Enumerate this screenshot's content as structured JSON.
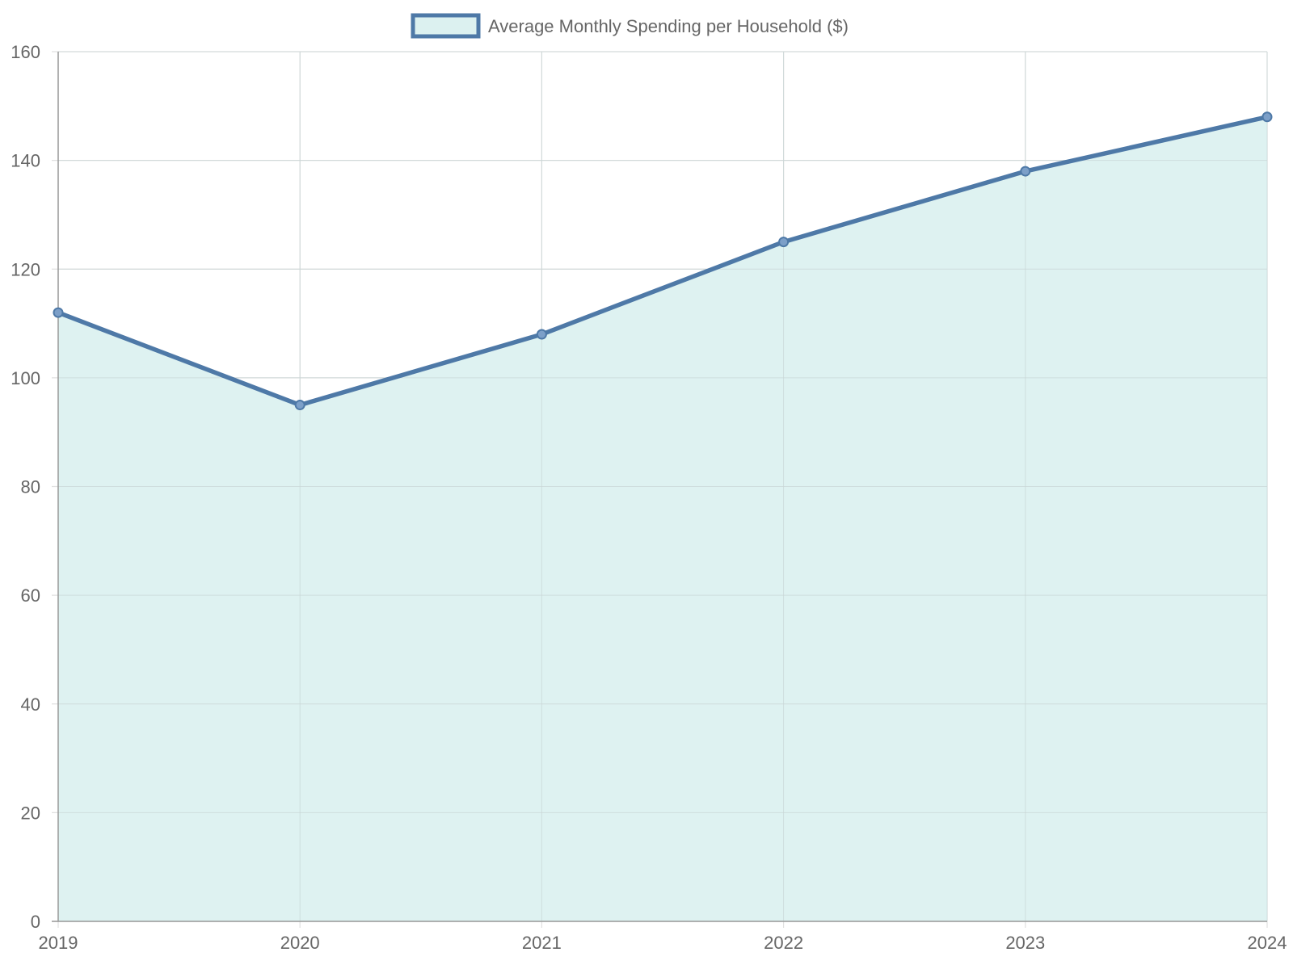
{
  "chart_data": {
    "type": "area",
    "x": [
      "2019",
      "2020",
      "2021",
      "2022",
      "2023",
      "2024"
    ],
    "series": [
      {
        "name": "Average Monthly Spending per Household ($)",
        "values": [
          112,
          95,
          108,
          125,
          138,
          148
        ]
      }
    ],
    "ylim": [
      0,
      160
    ],
    "yticks": [
      0,
      20,
      40,
      60,
      80,
      100,
      120,
      140,
      160
    ],
    "grid": true,
    "legend_position": "top-center",
    "colors": {
      "line": "#4e79a7",
      "fill": "#dcf1f0",
      "point": "#7c9fc8",
      "grid": "#e0e0e0",
      "axis": "#999999",
      "text": "#666666"
    }
  }
}
